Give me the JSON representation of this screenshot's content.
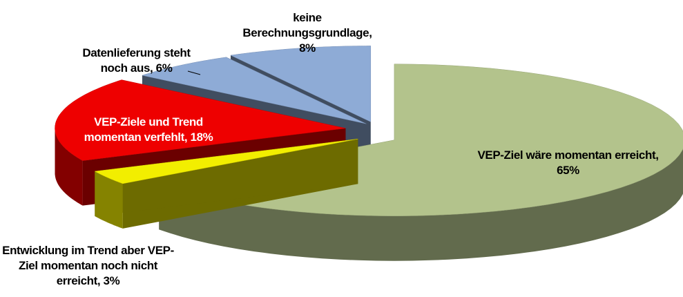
{
  "chart_data": {
    "type": "pie",
    "categories": [
      "VEP-Ziel wäre momentan erreicht",
      "Entwicklung im Trend aber VEP-Ziel momentan noch nicht erreicht",
      "VEP-Ziele und Trend momentan verfehlt",
      "Datenlieferung steht noch aus",
      "keine Berechnungsgrundlage"
    ],
    "values": [
      65,
      3,
      18,
      6,
      8
    ],
    "value_labels": [
      "VEP-Ziel wäre momentan erreicht, 65%",
      "Entwicklung im Trend aber VEP-Ziel momentan noch nicht erreicht, 3%",
      "VEP-Ziele und Trend momentan verfehlt, 18%",
      "Datenlieferung steht noch aus, 6%",
      "keine Berechnungsgrundlage, 8%"
    ],
    "colors": [
      "#b3c38c",
      "#f2ee00",
      "#ee0000",
      "#8eabd6",
      "#8eabd6"
    ]
  }
}
